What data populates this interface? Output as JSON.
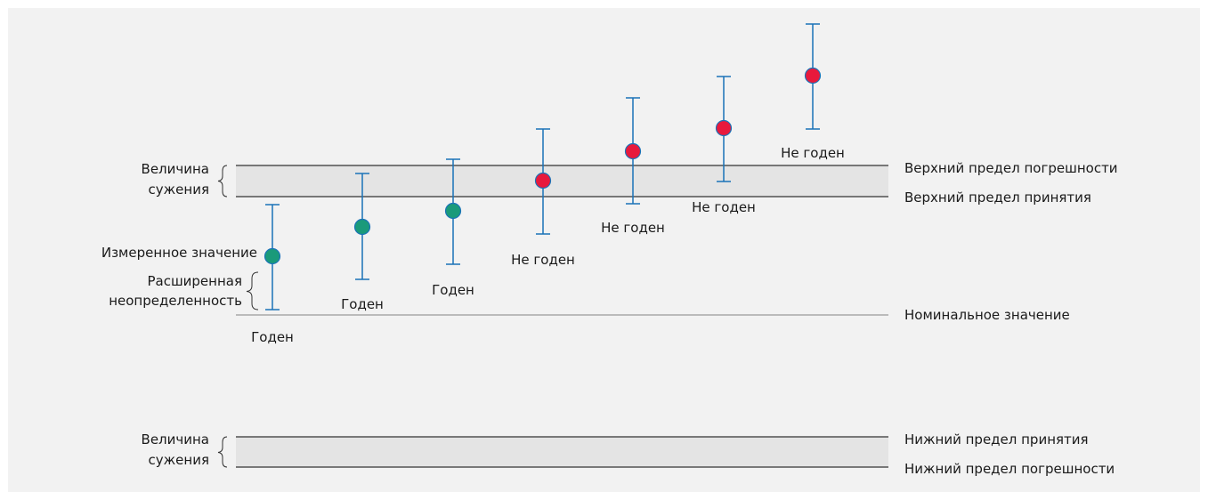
{
  "colors": {
    "background": "#f2f2f2",
    "band": "#e4e4e4",
    "line": "#333333",
    "nominal_line": "#9a9a9a",
    "error_bar": "#1a73b8",
    "pass": "#1a9a7a",
    "fail": "#e8193c"
  },
  "labels": {
    "upper_error_limit": "Верхний предел погрешности",
    "upper_acceptance_limit": "Верхний предел принятия",
    "nominal_value": "Номинальное значение",
    "lower_acceptance_limit": "Нижний предел принятия",
    "lower_error_limit": "Нижний предел погрешности",
    "guard_band": "Величина\nсужения",
    "measured_value": "Измеренное значение",
    "expanded_uncertainty": "Расширенная\nнеопределенность"
  },
  "measurements": [
    {
      "status": "pass",
      "verdict": "Годен"
    },
    {
      "status": "pass",
      "verdict": "Годен"
    },
    {
      "status": "pass",
      "verdict": "Годен"
    },
    {
      "status": "fail",
      "verdict": "Не годен"
    },
    {
      "status": "fail",
      "verdict": "Не годен"
    },
    {
      "status": "fail",
      "verdict": "Не годен"
    },
    {
      "status": "fail",
      "verdict": "Не годен"
    }
  ]
}
